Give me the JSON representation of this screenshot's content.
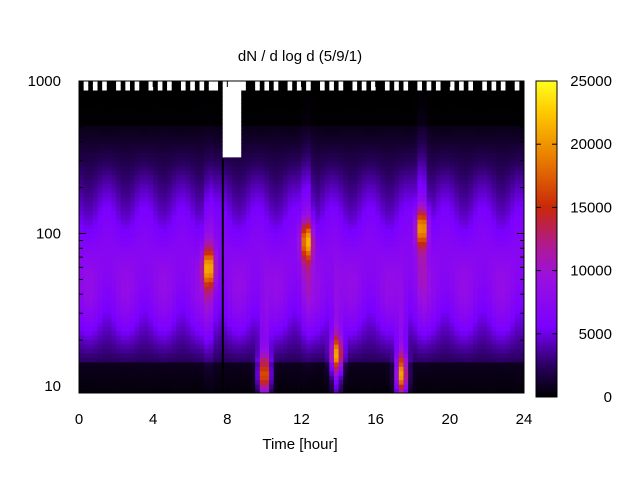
{
  "chart_data": {
    "type": "heatmap",
    "title": "dN / d log d (5/9/1)",
    "xlabel": "Time [hour]",
    "ylabel": "",
    "x_range": [
      0,
      24
    ],
    "y_range": [
      9,
      1000
    ],
    "y_scale": "log",
    "x_ticks": [
      "0",
      "4",
      "8",
      "12",
      "16",
      "20",
      "24"
    ],
    "y_ticks": [
      "10",
      "100",
      "1000"
    ],
    "colorbar": {
      "range": [
        0,
        25000
      ],
      "ticks": [
        "0",
        "5000",
        "10000",
        "15000",
        "20000",
        "25000"
      ],
      "palette": [
        "#000000",
        "#3a0078",
        "#7a00ff",
        "#b81fc0",
        "#c8280a",
        "#e87a00",
        "#ffc800",
        "#ffff1e"
      ]
    },
    "background_mode": {
      "diameter": 50,
      "value": 9000
    },
    "features": [
      {
        "time": 10.0,
        "diameter": 12,
        "value": 14000
      },
      {
        "time": 12.3,
        "diameter": 90,
        "value": 12000
      },
      {
        "time": 13.9,
        "diameter": 16,
        "value": 13500
      },
      {
        "time": 17.4,
        "diameter": 12,
        "value": 15000
      },
      {
        "time": 18.5,
        "diameter": 110,
        "value": 12500
      },
      {
        "time": 7.0,
        "diameter": 60,
        "value": 11500
      }
    ],
    "data_gap": {
      "from": 7.7,
      "to": 8.7,
      "above_diameter": 310
    },
    "grid": false,
    "legend": "none"
  }
}
